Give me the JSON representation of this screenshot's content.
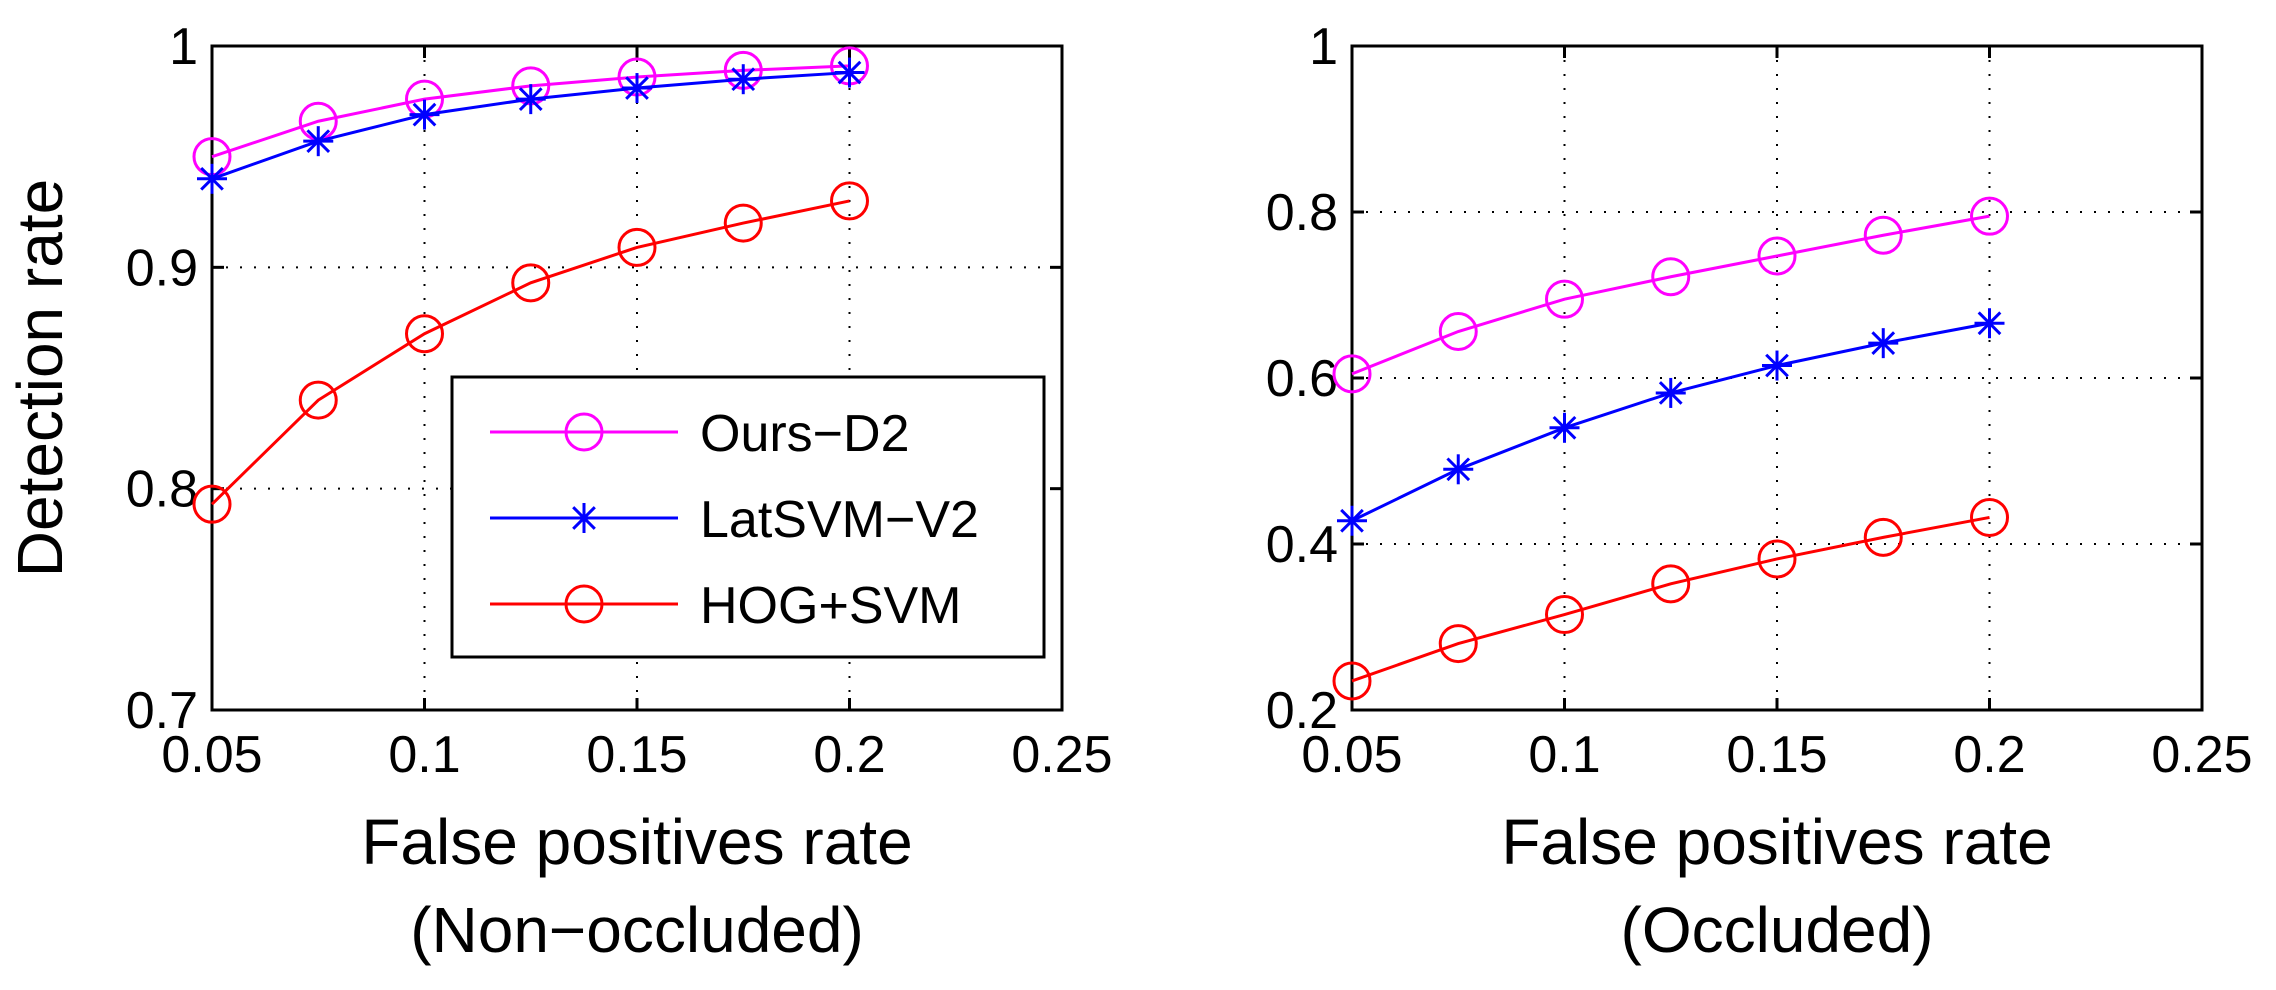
{
  "figure": {
    "colors": {
      "Ours-D2": "#ff00ff",
      "LatSVM-V2": "#0000ff",
      "HOG+SVM": "#ff0000",
      "axis": "#000000",
      "grid": "#000000"
    }
  },
  "chart_data": [
    {
      "type": "line",
      "title": "",
      "xlabel": "False positives rate",
      "xlabel_sub": "(Non−occluded)",
      "ylabel": "Detection rate",
      "xlim": [
        0.05,
        0.25
      ],
      "ylim": [
        0.7,
        1.0
      ],
      "grid": true,
      "grid_style": "dotted",
      "legend_position": "lower-right",
      "x_ticks": [
        "0.05",
        "0.1",
        "0.15",
        "0.2",
        "0.25"
      ],
      "y_ticks": [
        "0.7",
        "0.8",
        "0.9",
        "1"
      ],
      "x": [
        0.05,
        0.075,
        0.1,
        0.125,
        0.15,
        0.175,
        0.2
      ],
      "series": [
        {
          "name": "Ours−D2",
          "color": "#ff00ff",
          "marker": "circle",
          "values": [
            0.95,
            0.966,
            0.976,
            0.982,
            0.986,
            0.989,
            0.991
          ]
        },
        {
          "name": "LatSVM−V2",
          "color": "#0000ff",
          "marker": "star",
          "values": [
            0.94,
            0.957,
            0.969,
            0.976,
            0.981,
            0.985,
            0.988
          ]
        },
        {
          "name": "HOG+SVM",
          "color": "#ff0000",
          "marker": "circle",
          "values": [
            0.793,
            0.84,
            0.87,
            0.893,
            0.909,
            0.92,
            0.93
          ]
        }
      ]
    },
    {
      "type": "line",
      "title": "",
      "xlabel": "False positives rate",
      "xlabel_sub": "(Occluded)",
      "ylabel": "",
      "xlim": [
        0.05,
        0.25
      ],
      "ylim": [
        0.2,
        1.0
      ],
      "grid": true,
      "grid_style": "dotted",
      "legend_position": "none",
      "x_ticks": [
        "0.05",
        "0.1",
        "0.15",
        "0.2",
        "0.25"
      ],
      "y_ticks": [
        "0.2",
        "0.4",
        "0.6",
        "0.8",
        "1"
      ],
      "x": [
        0.05,
        0.075,
        0.1,
        0.125,
        0.15,
        0.175,
        0.2
      ],
      "series": [
        {
          "name": "Ours−D2",
          "color": "#ff00ff",
          "marker": "circle",
          "values": [
            0.605,
            0.656,
            0.695,
            0.722,
            0.747,
            0.772,
            0.795
          ]
        },
        {
          "name": "LatSVM−V2",
          "color": "#0000ff",
          "marker": "star",
          "values": [
            0.428,
            0.49,
            0.54,
            0.582,
            0.615,
            0.642,
            0.666
          ]
        },
        {
          "name": "HOG+SVM",
          "color": "#ff0000",
          "marker": "circle",
          "values": [
            0.235,
            0.28,
            0.315,
            0.352,
            0.382,
            0.408,
            0.432
          ]
        }
      ]
    }
  ]
}
